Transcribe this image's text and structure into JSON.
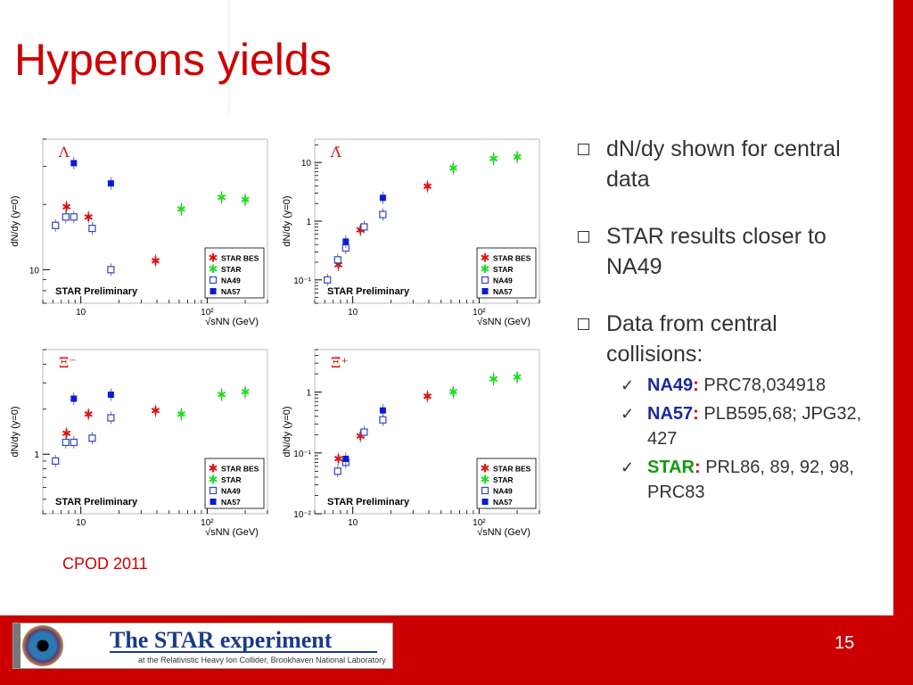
{
  "slide": {
    "title": "Hyperons yields",
    "page_number": "15",
    "footnote": "CPOD 2011"
  },
  "bullets": [
    {
      "text": "dN/dy shown for central data"
    },
    {
      "text": "STAR results closer to NA49"
    },
    {
      "text": "Data from central collisions:"
    }
  ],
  "references": [
    {
      "name": "NA49",
      "sep": ":",
      "text": " PRC78,034918",
      "color": "#1a2aa0"
    },
    {
      "name": "NA57",
      "sep": ":",
      "text": " PLB595,68; JPG32, 427",
      "color": "#1a2aa0"
    },
    {
      "name": "STAR",
      "sep": ":",
      "text": " PRL86, 89, 92, 98, PRC83",
      "color": "#119911"
    }
  ],
  "logo": {
    "title": "The STAR experiment",
    "subtitle": "at the Relativistic Heavy Ion Collider, Brookhaven National Laboratory"
  },
  "colors": {
    "accent": "#cc0000",
    "star_bes": "#dd1111",
    "star": "#22dd22",
    "na49": "#3344cc",
    "na57": "#0a1adc"
  },
  "chart_data": [
    {
      "type": "scatter",
      "particle": "Λ",
      "log_x": true,
      "log_y": true,
      "xlabel": "√sNN (GeV)",
      "ylabel": "dN/dy (y=0)",
      "label": "STAR Preliminary",
      "xlim": [
        5,
        300
      ],
      "ylim": [
        7,
        40
      ],
      "x_ticks": [
        "10",
        "10²"
      ],
      "y_ticks": [
        "10"
      ],
      "series": [
        {
          "name": "STAR BES",
          "points": [
            [
              7.7,
              19.5
            ],
            [
              11.5,
              17.5
            ],
            [
              39,
              11
            ]
          ]
        },
        {
          "name": "STAR",
          "points": [
            [
              62.4,
              19
            ],
            [
              130,
              21.5
            ],
            [
              200,
              21
            ]
          ]
        },
        {
          "name": "NA49",
          "points": [
            [
              6.3,
              16
            ],
            [
              7.6,
              17.5
            ],
            [
              8.8,
              17.5
            ],
            [
              12.3,
              15.5
            ],
            [
              17.3,
              10
            ]
          ]
        },
        {
          "name": "NA57",
          "points": [
            [
              8.8,
              31
            ],
            [
              17.3,
              25
            ]
          ]
        }
      ]
    },
    {
      "type": "scatter",
      "particle": "Λ̄",
      "log_x": true,
      "log_y": true,
      "xlabel": "√sNN (GeV)",
      "ylabel": "dN/dy (y=0)",
      "label": "STAR Preliminary",
      "xlim": [
        5,
        300
      ],
      "ylim": [
        0.04,
        25
      ],
      "x_ticks": [
        "10",
        "10²"
      ],
      "y_ticks": [
        "10⁻¹",
        "1",
        "10"
      ],
      "series": [
        {
          "name": "STAR BES",
          "points": [
            [
              7.7,
              0.18
            ],
            [
              11.5,
              0.7
            ],
            [
              39,
              3.9
            ]
          ]
        },
        {
          "name": "STAR",
          "points": [
            [
              62.4,
              8
            ],
            [
              130,
              11.5
            ],
            [
              200,
              12.5
            ]
          ]
        },
        {
          "name": "NA49",
          "points": [
            [
              6.3,
              0.1
            ],
            [
              7.6,
              0.22
            ],
            [
              8.8,
              0.35
            ],
            [
              12.3,
              0.8
            ],
            [
              17.3,
              1.3
            ]
          ]
        },
        {
          "name": "NA57",
          "points": [
            [
              8.8,
              0.45
            ],
            [
              17.3,
              2.5
            ]
          ]
        }
      ]
    },
    {
      "type": "scatter",
      "particle": "Ξ⁻",
      "log_x": true,
      "log_y": true,
      "xlabel": "√sNN (GeV)",
      "ylabel": "dN/dy (y=0)",
      "label": "STAR Preliminary",
      "xlim": [
        5,
        300
      ],
      "ylim": [
        0.4,
        5
      ],
      "x_ticks": [
        "10",
        "10²"
      ],
      "y_ticks": [
        "1"
      ],
      "series": [
        {
          "name": "STAR BES",
          "points": [
            [
              7.7,
              1.38
            ],
            [
              11.5,
              1.85
            ],
            [
              39,
              1.95
            ]
          ]
        },
        {
          "name": "STAR",
          "points": [
            [
              62.4,
              1.85
            ],
            [
              130,
              2.5
            ],
            [
              200,
              2.6
            ]
          ]
        },
        {
          "name": "NA49",
          "points": [
            [
              6.3,
              0.9
            ],
            [
              7.6,
              1.2
            ],
            [
              8.8,
              1.2
            ],
            [
              12.3,
              1.28
            ],
            [
              17.3,
              1.75
            ]
          ]
        },
        {
          "name": "NA57",
          "points": [
            [
              8.8,
              2.35
            ],
            [
              17.3,
              2.5
            ]
          ]
        }
      ]
    },
    {
      "type": "scatter",
      "particle": "Ξ̄⁺",
      "log_x": true,
      "log_y": true,
      "xlabel": "√sNN (GeV)",
      "ylabel": "dN/dy (y=0)",
      "label": "STAR Preliminary",
      "xlim": [
        5,
        300
      ],
      "ylim": [
        0.01,
        5
      ],
      "x_ticks": [
        "10",
        "10²"
      ],
      "y_ticks": [
        "10⁻²",
        "10⁻¹",
        "1"
      ],
      "series": [
        {
          "name": "STAR BES",
          "points": [
            [
              7.7,
              0.08
            ],
            [
              11.5,
              0.19
            ],
            [
              39,
              0.85
            ]
          ]
        },
        {
          "name": "STAR",
          "points": [
            [
              62.4,
              1.0
            ],
            [
              130,
              1.65
            ],
            [
              200,
              1.75
            ]
          ]
        },
        {
          "name": "NA49",
          "points": [
            [
              7.6,
              0.05
            ],
            [
              8.8,
              0.07
            ],
            [
              12.3,
              0.22
            ],
            [
              17.3,
              0.35
            ]
          ]
        },
        {
          "name": "NA57",
          "points": [
            [
              8.8,
              0.08
            ],
            [
              17.3,
              0.5
            ]
          ]
        }
      ]
    }
  ]
}
